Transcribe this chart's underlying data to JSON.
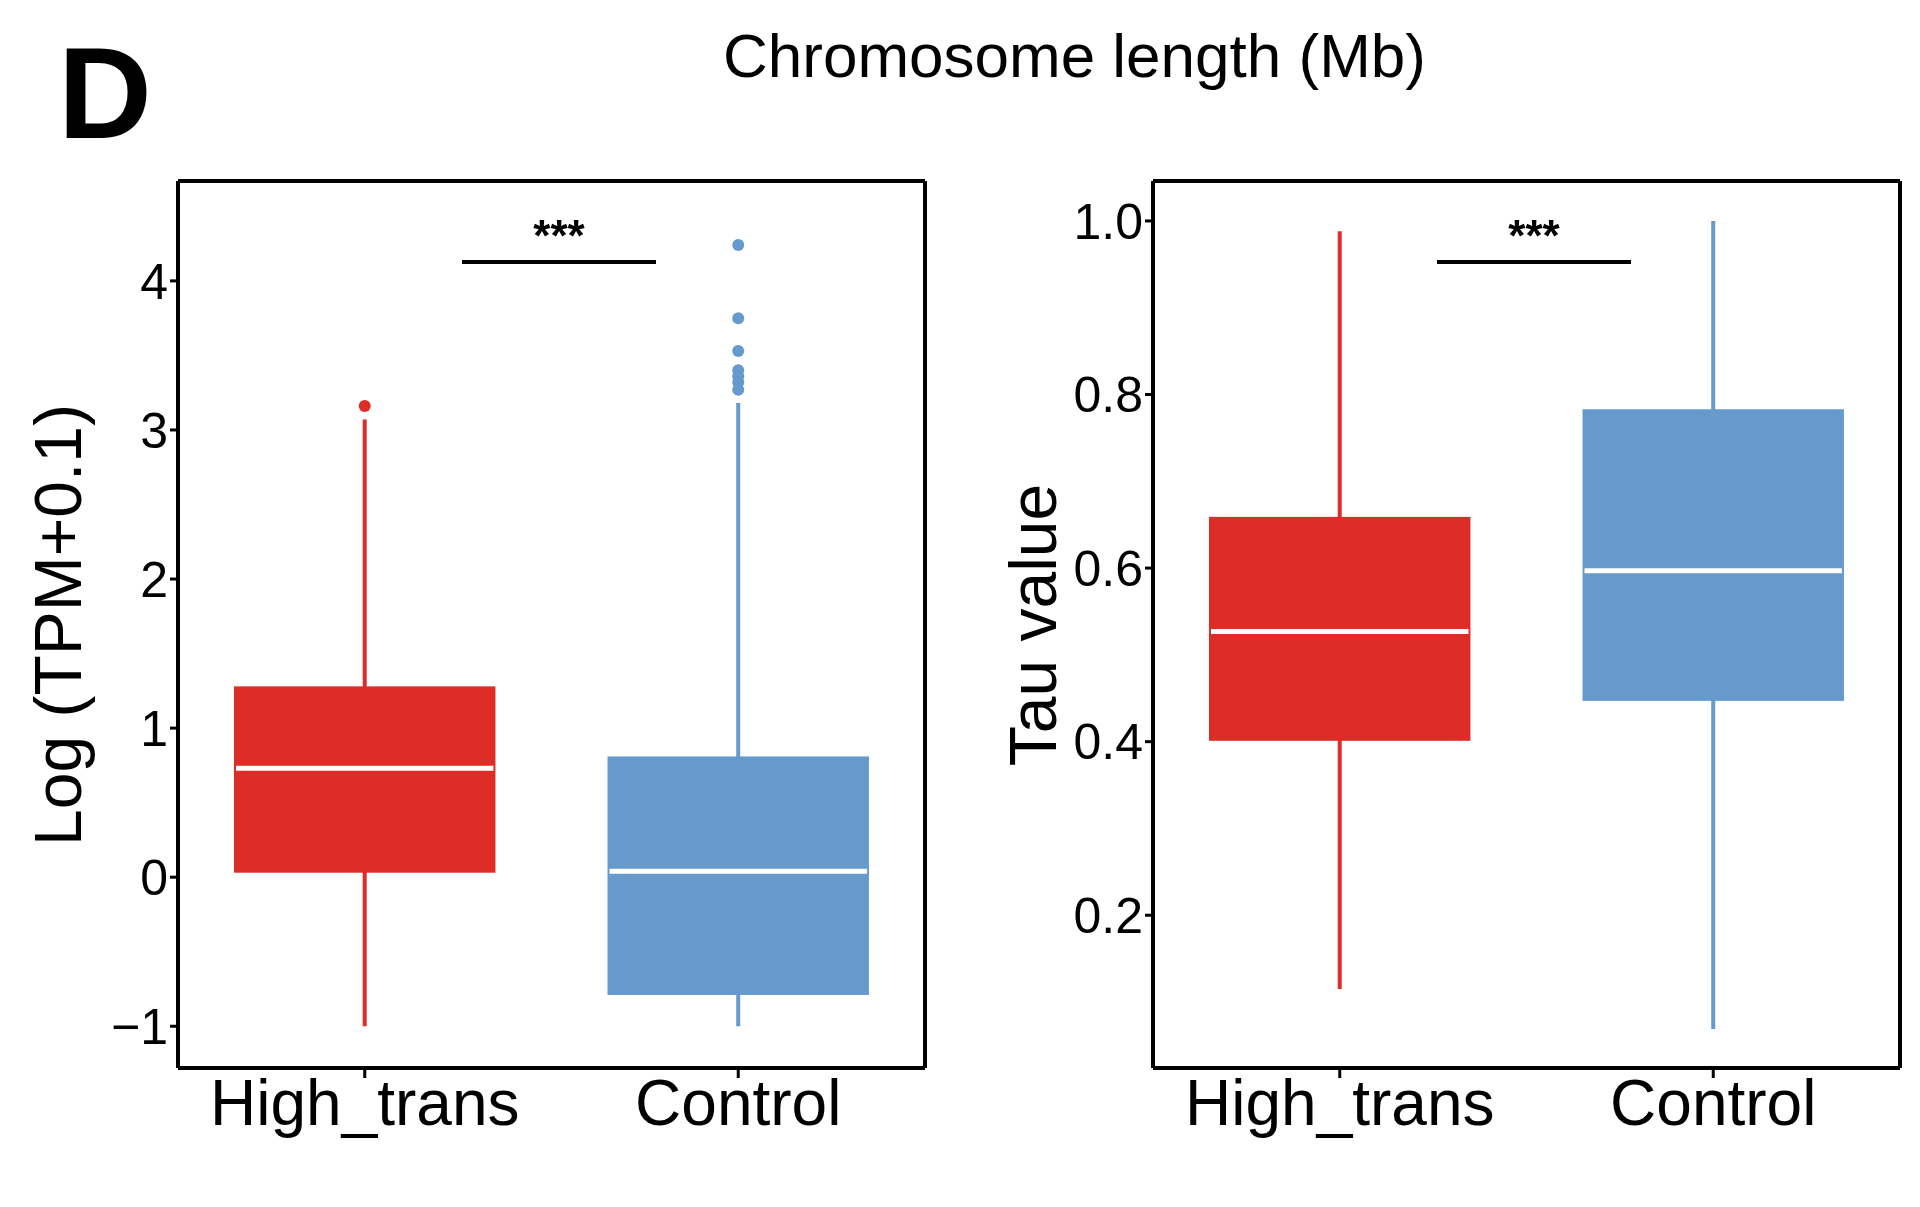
{
  "chart_data": [
    {
      "type": "box",
      "ylabel": "Log (TPM+0.1)",
      "categories": [
        "High_trans",
        "Control"
      ],
      "colors": [
        "#de2d26",
        "#6699cc"
      ],
      "boxes": [
        {
          "low": -1,
          "q1": 0.03,
          "median": 0.73,
          "q3": 1.28,
          "high": 3.07,
          "outliers": [
            3.16
          ]
        },
        {
          "low": -1,
          "q1": -0.79,
          "median": 0.04,
          "q3": 0.81,
          "high": 3.18,
          "outliers": [
            4.24,
            3.75,
            3.53,
            3.4,
            3.36,
            3.32,
            3.27
          ]
        }
      ],
      "ylim": [
        -1.28,
        4.67
      ],
      "yticks": [
        -1,
        0,
        1,
        2,
        3,
        4
      ],
      "annotations": [
        "D",
        "***"
      ]
    },
    {
      "type": "box",
      "ylabel": "Tau value",
      "categories": [
        "High_trans",
        "Control"
      ],
      "colors": [
        "#de2d26",
        "#6699cc"
      ],
      "boxes": [
        {
          "low": 0.115,
          "q1": 0.401,
          "median": 0.527,
          "q3": 0.659,
          "high": 0.988
        },
        {
          "low": 0.069,
          "q1": 0.447,
          "median": 0.597,
          "q3": 0.783,
          "high": 1.0
        }
      ],
      "ylim": [
        0.024,
        1.046
      ],
      "yticks": [
        0.2,
        0.4,
        0.6,
        0.8,
        {
          "value": 1,
          "label": "1.0"
        }
      ],
      "annotations": [
        "Chromosome length (Mb)",
        "***"
      ]
    }
  ]
}
